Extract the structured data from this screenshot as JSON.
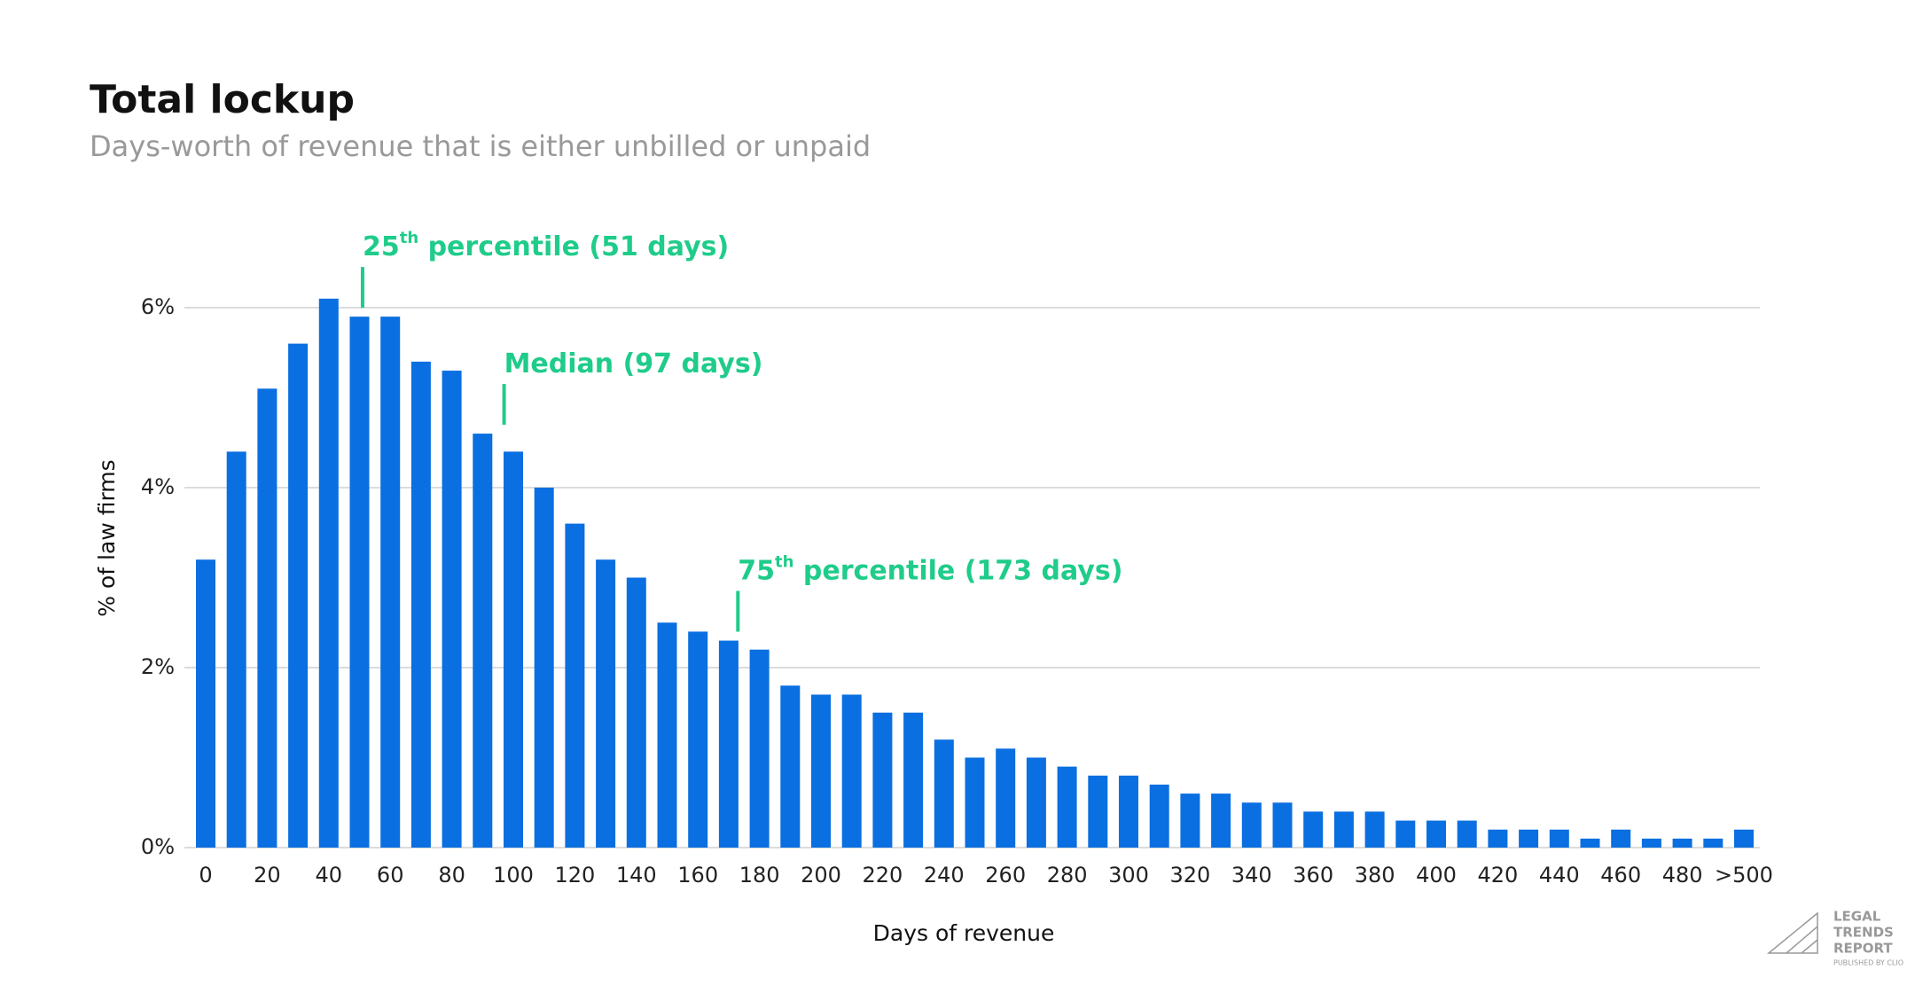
{
  "chart_data": {
    "type": "bar",
    "title": "Total lockup",
    "subtitle": "Days-worth of revenue that is either unbilled or unpaid",
    "x_label": "Days of revenue",
    "y_label": "% of law firms",
    "categories": [
      "0",
      null,
      "20",
      null,
      "40",
      null,
      "60",
      null,
      "80",
      null,
      "100",
      null,
      "120",
      null,
      "140",
      null,
      "160",
      null,
      "180",
      null,
      "200",
      null,
      "220",
      null,
      "240",
      null,
      "260",
      null,
      "280",
      null,
      "300",
      null,
      "320",
      null,
      "340",
      null,
      "360",
      null,
      "380",
      null,
      "400",
      null,
      "420",
      null,
      "440",
      null,
      "460",
      null,
      "480",
      null,
      ">500"
    ],
    "values": [
      3.2,
      4.4,
      5.1,
      5.6,
      6.1,
      5.9,
      5.9,
      5.4,
      5.3,
      4.6,
      4.4,
      4.0,
      3.6,
      3.2,
      3.0,
      2.5,
      2.4,
      2.3,
      2.2,
      1.8,
      1.7,
      1.7,
      1.5,
      1.5,
      1.2,
      1.0,
      1.1,
      1.0,
      0.9,
      0.8,
      0.8,
      0.7,
      0.6,
      0.6,
      0.5,
      0.5,
      0.4,
      0.4,
      0.4,
      0.3,
      0.3,
      0.3,
      0.2,
      0.2,
      0.2,
      0.1,
      0.2,
      0.1,
      0.1,
      0.1,
      0.2
    ],
    "color": "#0a6fe0",
    "ylim": [
      0,
      6.5
    ],
    "yticks": [
      {
        "value": 0,
        "label": "0%"
      },
      {
        "value": 2,
        "label": "2%"
      },
      {
        "value": 4,
        "label": "4%"
      },
      {
        "value": 6,
        "label": "6%"
      }
    ],
    "grid": true,
    "annotations": [
      {
        "text": "25",
        "sup": "th",
        "rest": " percentile (51 days)",
        "x": 51
      },
      {
        "text": "Median (97 days)",
        "x": 97
      },
      {
        "text": "75",
        "sup": "th",
        "rest": " percentile (173 days)",
        "x": 173
      }
    ],
    "annotation_color": "#1fcc8a"
  },
  "branding": {
    "lines": [
      "LEGAL",
      "TRENDS",
      "REPORT"
    ],
    "tagline": "PUBLISHED BY CLIO"
  }
}
